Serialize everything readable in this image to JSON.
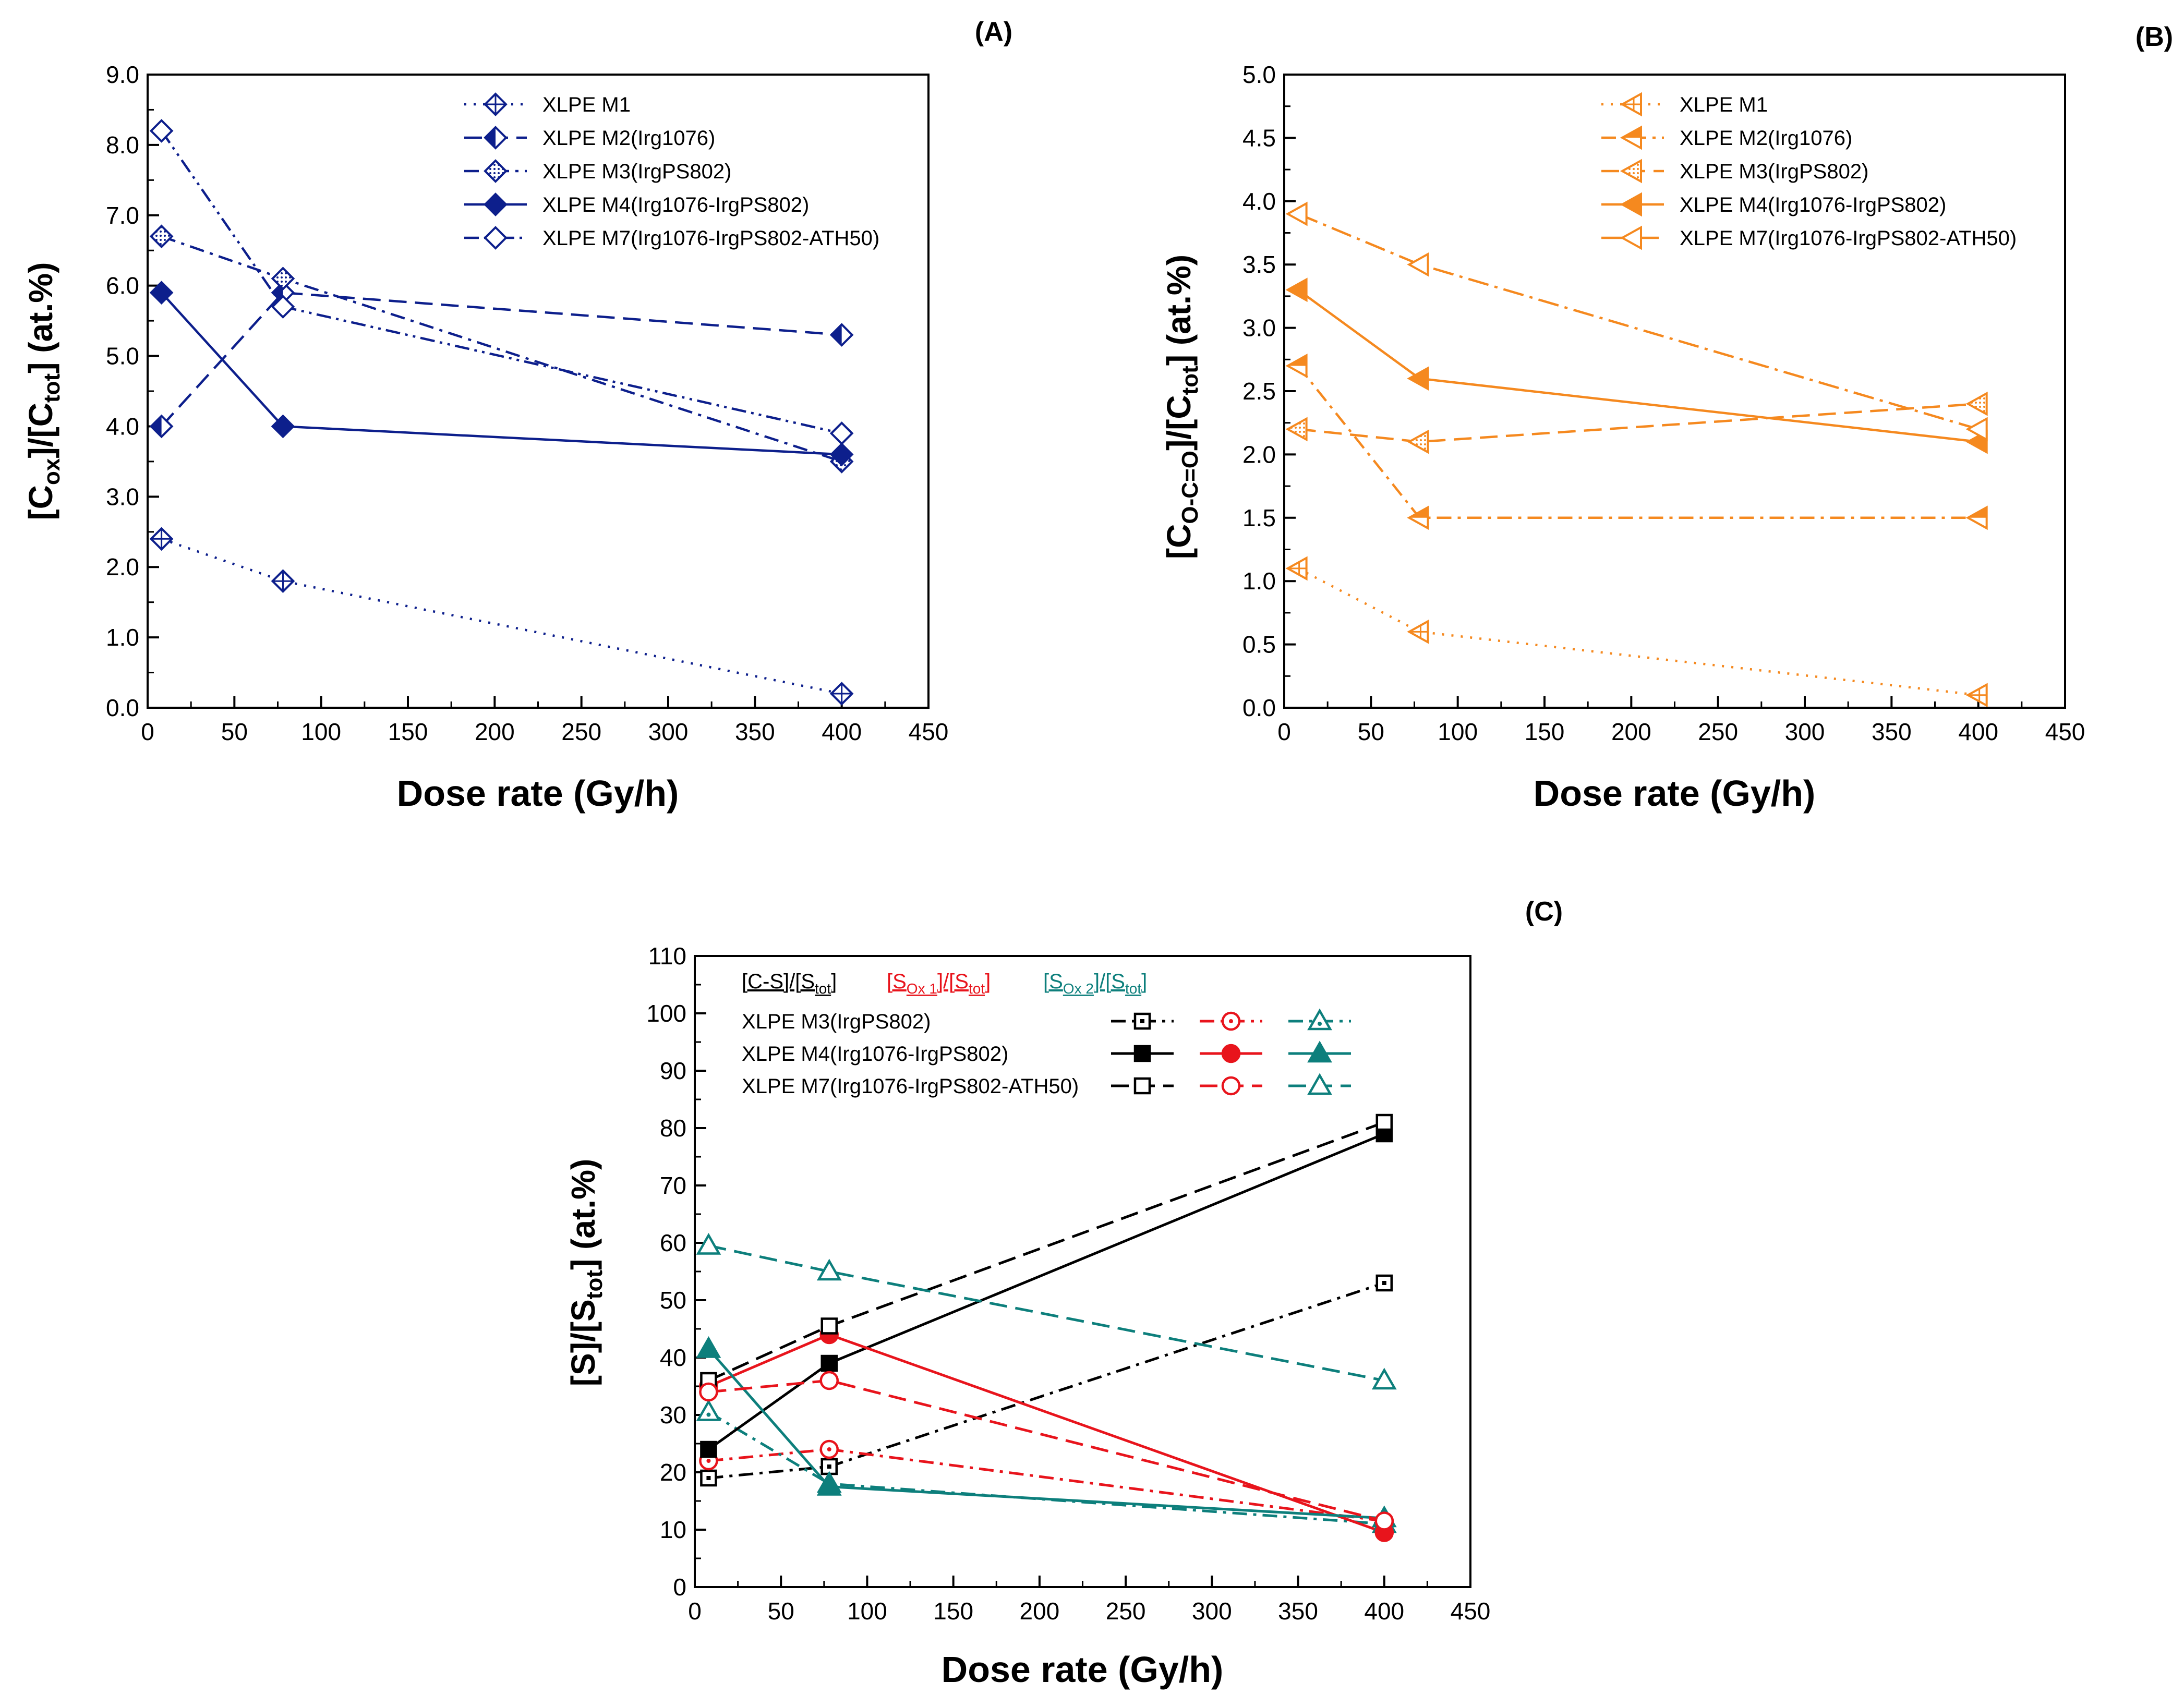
{
  "chart_data": [
    {
      "panel": "(A)",
      "type": "line",
      "color": "#0d1f8c",
      "xlabel": "Dose rate (Gy/h)",
      "ylabel": {
        "main": "[C",
        "sub1": "ox",
        "mid": "]/[C",
        "sub2": "tot",
        "tail": "] (at.%)"
      },
      "xlim": [
        0,
        450
      ],
      "ylim": [
        0,
        9
      ],
      "xticks": [
        0,
        50,
        100,
        150,
        200,
        250,
        300,
        350,
        400,
        450
      ],
      "yticks": [
        0,
        1,
        2,
        3,
        4,
        5,
        6,
        7,
        8,
        9
      ],
      "ytick_decimals": 1,
      "legend_position": "top-right",
      "x": [
        8,
        78,
        400
      ],
      "series": [
        {
          "name": "XLPE M1",
          "values": [
            2.4,
            1.8,
            0.2
          ],
          "dash": "dot",
          "marker": "diamond-cross"
        },
        {
          "name": "XLPE M2(Irg1076)",
          "values": [
            4.0,
            5.9,
            5.3
          ],
          "dash": "dash",
          "marker": "diamond-half"
        },
        {
          "name": "XLPE M3(IrgPS802)",
          "values": [
            6.7,
            6.1,
            3.5
          ],
          "dash": "dashdot",
          "marker": "diamond-dotted"
        },
        {
          "name": "XLPE M4(Irg1076-IrgPS802)",
          "values": [
            5.9,
            4.0,
            3.6
          ],
          "dash": "solid",
          "marker": "diamond-filled"
        },
        {
          "name": "XLPE M7(Irg1076-IrgPS802-ATH50)",
          "values": [
            8.2,
            5.7,
            3.9
          ],
          "dash": "dashdotdot",
          "marker": "diamond-open"
        }
      ]
    },
    {
      "panel": "(B)",
      "type": "line",
      "color": "#f5891f",
      "xlabel": "Dose rate (Gy/h)",
      "ylabel": {
        "main": "[C",
        "sub1": "O-C=O",
        "mid": "]/[C",
        "sub2": "tot",
        "tail": "]  (at.%)"
      },
      "xlim": [
        0,
        450
      ],
      "ylim": [
        0,
        5
      ],
      "xticks": [
        0,
        50,
        100,
        150,
        200,
        250,
        300,
        350,
        400,
        450
      ],
      "yticks": [
        0,
        0.5,
        1,
        1.5,
        2,
        2.5,
        3,
        3.5,
        4,
        4.5,
        5
      ],
      "ytick_decimals": 1,
      "legend_position": "top-right",
      "x": [
        8,
        78,
        400
      ],
      "series": [
        {
          "name": "XLPE M1",
          "values": [
            1.1,
            0.6,
            0.1
          ],
          "dash": "dot",
          "marker": "tri-cross"
        },
        {
          "name": "XLPE M2(Irg1076)",
          "values": [
            2.7,
            1.5,
            1.5
          ],
          "dash": "dashdot",
          "marker": "tri-half"
        },
        {
          "name": "XLPE M3(IrgPS802)",
          "values": [
            2.2,
            2.1,
            2.4
          ],
          "dash": "dash",
          "marker": "tri-dotted"
        },
        {
          "name": "XLPE M4(Irg1076-IrgPS802)",
          "values": [
            3.3,
            2.6,
            2.1
          ],
          "dash": "solid",
          "marker": "tri-filled"
        },
        {
          "name": "XLPE M7(Irg1076-IrgPS802-ATH50)",
          "values": [
            3.9,
            3.5,
            2.2
          ],
          "dash": "dashdotlong",
          "marker": "tri-open"
        }
      ]
    },
    {
      "panel": "(C)",
      "type": "line",
      "xlabel": "Dose rate (Gy/h)",
      "ylabel": {
        "main": "[S]/[S",
        "sub1": "tot",
        "tail": "] (at.%)"
      },
      "xlim": [
        0,
        450
      ],
      "ylim": [
        0,
        110
      ],
      "xticks": [
        0,
        50,
        100,
        150,
        200,
        250,
        300,
        350,
        400,
        450
      ],
      "yticks": [
        0,
        10,
        20,
        30,
        40,
        50,
        60,
        70,
        80,
        90,
        100,
        110
      ],
      "ytick_decimals": 0,
      "legend_position": "top-left",
      "x": [
        8,
        78,
        400
      ],
      "groups": [
        {
          "label": "[C-S]/[S",
          "sub": "tot",
          "tail": "]",
          "color": "#000000",
          "marker": "square"
        },
        {
          "label": "[S",
          "sub": "Ox 1",
          "mid": "]/[S",
          "sub2": "tot",
          "tail": "]",
          "color": "#e8141c",
          "marker": "circle"
        },
        {
          "label": "[S",
          "sub": "Ox 2",
          "mid": "]/[S",
          "sub2": "tot",
          "tail": "]",
          "color": "#0d7f7c",
          "marker": "triangle"
        }
      ],
      "samples": [
        {
          "name": "XLPE M3(IrgPS802)",
          "dash": "dashdot",
          "fill": "dotted",
          "values": [
            [
              19,
              21,
              53
            ],
            [
              22,
              24,
              11.5
            ],
            [
              30.5,
              18,
              11
            ]
          ]
        },
        {
          "name": "XLPE M4(Irg1076-IrgPS802)",
          "dash": "solid",
          "fill": "filled",
          "values": [
            [
              24,
              39,
              79
            ],
            [
              35,
              44,
              9.5
            ],
            [
              41.5,
              17.5,
              12
            ]
          ]
        },
        {
          "name": "XLPE M7(Irg1076-IrgPS802-ATH50)",
          "dash": "dash",
          "fill": "open",
          "values": [
            [
              36,
              45.5,
              81
            ],
            [
              34,
              36,
              11.5
            ],
            [
              59.5,
              55,
              36
            ]
          ]
        }
      ]
    }
  ]
}
